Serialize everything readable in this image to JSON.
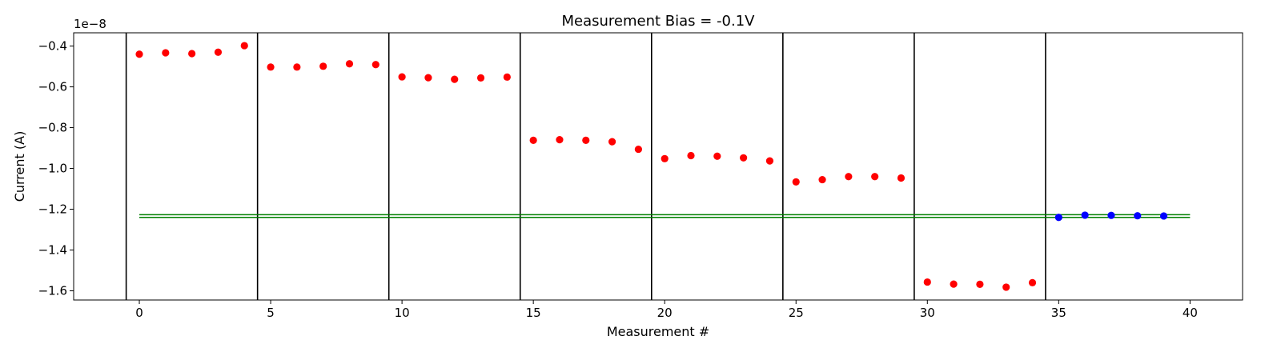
{
  "chart_data": {
    "type": "scatter",
    "title": "Measurement Bias = -0.1V",
    "xlabel": "Measurement #",
    "ylabel": "Current (A)",
    "y_offset_label": "1e−8",
    "y_scale_exponent": -8,
    "xlim": [
      -2.5,
      42
    ],
    "ylim": [
      -1.645,
      -0.335
    ],
    "x_ticks": [
      0,
      5,
      10,
      15,
      20,
      25,
      30,
      35,
      40
    ],
    "y_ticks": [
      -0.4,
      -0.6,
      -0.8,
      -1.0,
      -1.2,
      -1.4,
      -1.6
    ],
    "y_tick_labels": [
      "−0.4",
      "−0.6",
      "−0.8",
      "−1.0",
      "−1.2",
      "−1.4",
      "−1.6"
    ],
    "grid": false,
    "vertical_lines": {
      "x": [
        -0.5,
        4.5,
        9.5,
        14.5,
        19.5,
        24.5,
        29.5,
        34.5
      ],
      "color": "#000000"
    },
    "horizontal_lines": {
      "y": [
        -1.227,
        -1.24
      ],
      "x_range": [
        0,
        40
      ],
      "color": "#008000"
    },
    "series": [
      {
        "color": "#ff0000",
        "x": [
          0,
          1,
          2,
          3,
          4,
          5,
          6,
          7,
          8,
          9,
          10,
          11,
          12,
          13,
          14,
          15,
          16,
          17,
          18,
          19,
          20,
          21,
          22,
          23,
          24,
          25,
          26,
          27,
          28,
          29,
          30,
          31,
          32,
          33,
          34
        ],
        "y": [
          -0.44,
          -0.433,
          -0.437,
          -0.43,
          -0.398,
          -0.503,
          -0.503,
          -0.499,
          -0.487,
          -0.491,
          -0.551,
          -0.555,
          -0.563,
          -0.556,
          -0.552,
          -0.862,
          -0.859,
          -0.862,
          -0.869,
          -0.906,
          -0.952,
          -0.937,
          -0.94,
          -0.948,
          -0.963,
          -1.066,
          -1.055,
          -1.04,
          -1.04,
          -1.047,
          -1.557,
          -1.567,
          -1.568,
          -1.582,
          -1.56
        ]
      },
      {
        "color": "#0000ff",
        "x": [
          35,
          36,
          37,
          38,
          39
        ],
        "y": [
          -1.24,
          -1.229,
          -1.23,
          -1.232,
          -1.233
        ]
      }
    ]
  }
}
